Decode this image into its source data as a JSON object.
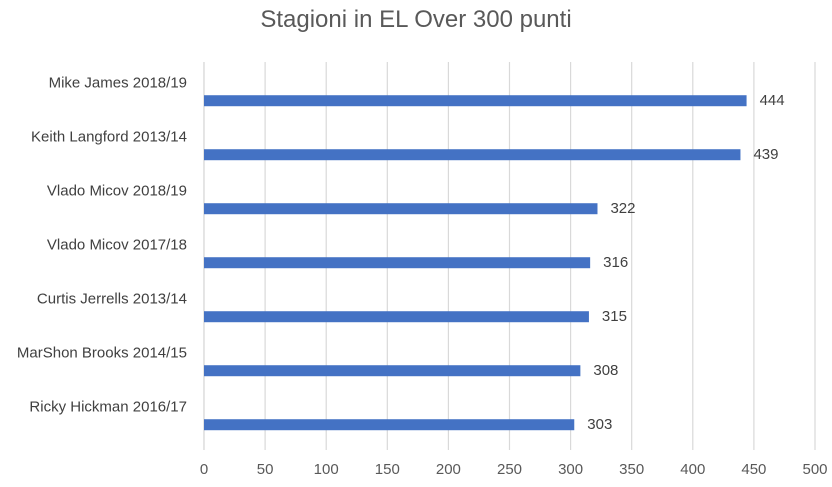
{
  "chart_data": {
    "type": "bar",
    "orientation": "horizontal",
    "title": "Stagioni in EL Over 300 punti",
    "categories": [
      "Mike James 2018/19",
      "Keith Langford 2013/14",
      "Vlado Micov 2018/19",
      "Vlado Micov 2017/18",
      "Curtis Jerrells 2013/14",
      "MarShon Brooks 2014/15",
      "Ricky Hickman 2016/17"
    ],
    "values": [
      444,
      439,
      322,
      316,
      315,
      308,
      303
    ],
    "data_labels": [
      "444",
      "439",
      "322",
      "316",
      "315",
      "308",
      "303"
    ],
    "xlim": [
      0,
      500
    ],
    "x_ticks": [
      "0",
      "50",
      "100",
      "150",
      "200",
      "250",
      "300",
      "350",
      "400",
      "450",
      "500"
    ],
    "grid": "vertical",
    "bar_color": "#4472C4",
    "legend": "none"
  }
}
